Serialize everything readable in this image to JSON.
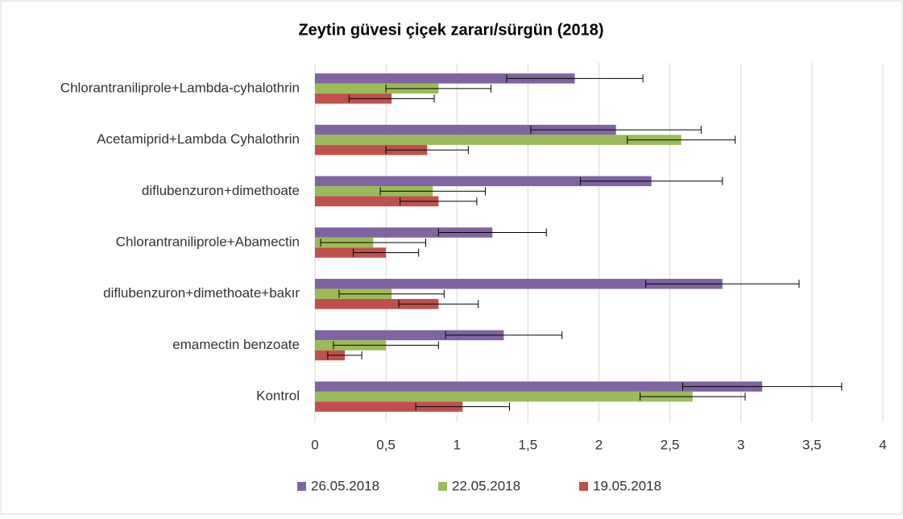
{
  "chart_data": {
    "type": "bar",
    "orientation": "horizontal",
    "title": "Zeytin güvesi çiçek zararı/sürgün (2018)",
    "categories": [
      "Chlorantraniliprole+Lambda-cyhalothrin",
      "Acetamiprid+Lambda Cyhalothrin",
      "diflubenzuron+dimethoate",
      "Chlorantraniliprole+Abamectin",
      "diflubenzuron+dimethoate+bakır",
      "emamectin benzoate",
      "Kontrol"
    ],
    "series": [
      {
        "name": "26.05.2018",
        "color": "#8064a2",
        "values": [
          1.83,
          2.12,
          2.37,
          1.25,
          2.87,
          1.33,
          3.15
        ],
        "errors": [
          0.48,
          0.6,
          0.5,
          0.38,
          0.54,
          0.41,
          0.56
        ]
      },
      {
        "name": "22.05.2018",
        "color": "#9bbb59",
        "values": [
          0.87,
          2.58,
          0.83,
          0.41,
          0.54,
          0.5,
          2.66
        ],
        "errors": [
          0.37,
          0.38,
          0.37,
          0.37,
          0.37,
          0.37,
          0.37
        ]
      },
      {
        "name": "19.05.2018",
        "color": "#c0504d",
        "values": [
          0.54,
          0.79,
          0.87,
          0.5,
          0.87,
          0.21,
          1.04
        ],
        "errors": [
          0.3,
          0.29,
          0.27,
          0.23,
          0.28,
          0.12,
          0.33
        ]
      }
    ],
    "xlim": [
      0,
      4
    ],
    "xticks": [
      0,
      {
        "value": 0.5,
        "label": "0,5"
      },
      1,
      {
        "value": 1.5,
        "label": "1,5"
      },
      2,
      {
        "value": 2.5,
        "label": "2,5"
      },
      3,
      {
        "value": 3.5,
        "label": "3,5"
      },
      4
    ],
    "grid": true,
    "legend": "bottom"
  }
}
